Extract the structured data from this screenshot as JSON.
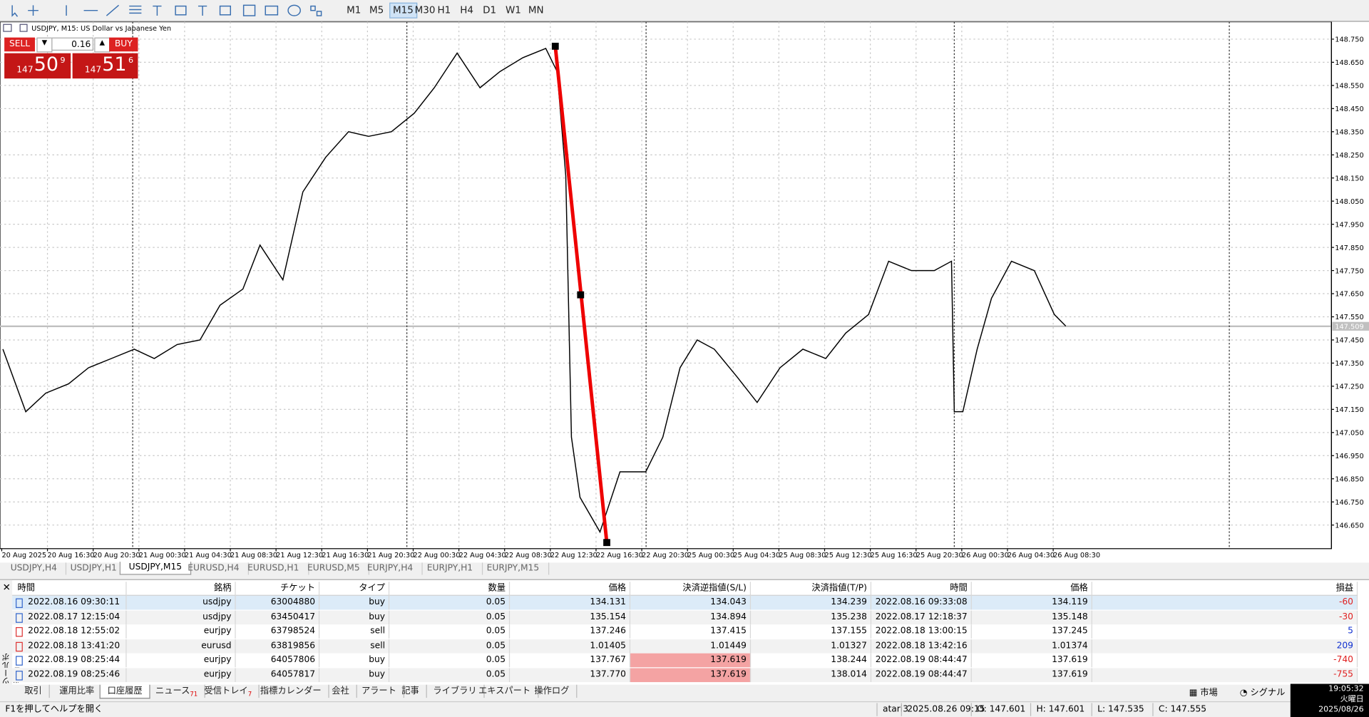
{
  "toolbar": {
    "timeframes": [
      "M1",
      "M5",
      "M15",
      "M30",
      "H1",
      "H4",
      "D1",
      "W1",
      "MN"
    ],
    "active": 2
  },
  "chart_data": {
    "type": "line",
    "title": "USDJPY, M15:  US Dollar vs Japanese Yen",
    "color": "#000000",
    "x": [
      1,
      9,
      16,
      24,
      31,
      39,
      47,
      54,
      62,
      70,
      77,
      85,
      91,
      99,
      106,
      114,
      122,
      129,
      137,
      145,
      152,
      160,
      168,
      175,
      183,
      191,
      195,
      198,
      200,
      203,
      210,
      217,
      226,
      232,
      238,
      244,
      250,
      258,
      265,
      273,
      281,
      289,
      296,
      304,
      311,
      319,
      327,
      333,
      334,
      337,
      342,
      347,
      354,
      362,
      369,
      373
    ],
    "values": [
      147.41,
      147.14,
      147.22,
      147.26,
      147.33,
      147.37,
      147.41,
      147.37,
      147.43,
      147.45,
      147.6,
      147.67,
      147.86,
      147.71,
      148.09,
      148.24,
      148.35,
      148.33,
      148.35,
      148.43,
      148.54,
      148.69,
      148.54,
      148.61,
      148.67,
      148.71,
      148.61,
      148.16,
      147.03,
      146.77,
      146.62,
      146.88,
      146.88,
      147.03,
      147.33,
      147.45,
      147.41,
      147.29,
      147.18,
      147.33,
      147.41,
      147.37,
      147.48,
      147.56,
      147.79,
      147.75,
      147.75,
      147.79,
      147.14,
      147.14,
      147.41,
      147.63,
      147.79,
      147.75,
      147.56,
      147.51
    ],
    "xlim": [
      0,
      466
    ],
    "ylim": [
      146.548,
      148.825
    ],
    "yticks": [
      {
        "value": 148.75,
        "label": "148.750"
      },
      {
        "value": 148.65,
        "label": "148.650"
      },
      {
        "value": 148.55,
        "label": "148.550"
      },
      {
        "value": 148.45,
        "label": "148.450"
      },
      {
        "value": 148.35,
        "label": "148.350"
      },
      {
        "value": 148.25,
        "label": "148.250"
      },
      {
        "value": 148.15,
        "label": "148.150"
      },
      {
        "value": 148.05,
        "label": "148.050"
      },
      {
        "value": 147.95,
        "label": "147.950"
      },
      {
        "value": 147.85,
        "label": "147.850"
      },
      {
        "value": 147.75,
        "label": "147.750"
      },
      {
        "value": 147.65,
        "label": "147.650"
      },
      {
        "value": 147.55,
        "label": "147.550"
      },
      {
        "value": 147.45,
        "label": "147.450"
      },
      {
        "value": 147.35,
        "label": "147.350"
      },
      {
        "value": 147.25,
        "label": "147.250"
      },
      {
        "value": 147.15,
        "label": "147.150"
      },
      {
        "value": 147.05,
        "label": "147.050"
      },
      {
        "value": 146.95,
        "label": "146.950"
      },
      {
        "value": 146.85,
        "label": "146.850"
      },
      {
        "value": 146.75,
        "label": "146.750"
      },
      {
        "value": 146.65,
        "label": "146.650"
      }
    ],
    "xticks": [
      {
        "value": 0,
        "label": "20 Aug 2025"
      },
      {
        "value": 16,
        "label": "20 Aug 16:30"
      },
      {
        "value": 32,
        "label": "20 Aug 20:30"
      },
      {
        "value": 48,
        "label": "21 Aug 00:30"
      },
      {
        "value": 64,
        "label": "21 Aug 04:30"
      },
      {
        "value": 80,
        "label": "21 Aug 08:30"
      },
      {
        "value": 96,
        "label": "21 Aug 12:30"
      },
      {
        "value": 112,
        "label": "21 Aug 16:30"
      },
      {
        "value": 128,
        "label": "21 Aug 20:30"
      },
      {
        "value": 144,
        "label": "22 Aug 00:30"
      },
      {
        "value": 160,
        "label": "22 Aug 04:30"
      },
      {
        "value": 176,
        "label": "22 Aug 08:30"
      },
      {
        "value": 192,
        "label": "22 Aug 12:30"
      },
      {
        "value": 208,
        "label": "22 Aug 16:30"
      },
      {
        "value": 224,
        "label": "22 Aug 20:30"
      },
      {
        "value": 240,
        "label": "25 Aug 00:30"
      },
      {
        "value": 256,
        "label": "25 Aug 04:30"
      },
      {
        "value": 272,
        "label": "25 Aug 08:30"
      },
      {
        "value": 288,
        "label": "25 Aug 12:30"
      },
      {
        "value": 304,
        "label": "25 Aug 16:30"
      },
      {
        "value": 320,
        "label": "25 Aug 20:30"
      },
      {
        "value": 336,
        "label": "26 Aug 00:30"
      },
      {
        "value": 352,
        "label": "26 Aug 04:30"
      },
      {
        "value": 368,
        "label": "26 Aug 08:30"
      }
    ],
    "current_price": 147.509,
    "grid": true
  },
  "trade_panel": {
    "sell": "SELL",
    "buy": "BUY",
    "volume": "0.16",
    "bid": [
      "147",
      "50",
      "9"
    ],
    "ask": [
      "147",
      "51",
      "6"
    ]
  },
  "chart_tabs": [
    "USDJPY,H4",
    "USDJPY,H1",
    "USDJPY,M15",
    "EURUSD,H4",
    "EURUSD,H1",
    "EURUSD,M5",
    "EURJPY,H4",
    "EURJPY,H1",
    "EURJPY,M15"
  ],
  "active_tab": 2,
  "table": {
    "headers": [
      "時間",
      "銘柄",
      "チケット",
      "タイプ",
      "数量",
      "価格",
      "決済逆指値(S/L)",
      "決済指値(T/P)",
      "時間",
      "価格",
      "損益"
    ],
    "rows": [
      [
        "2022.08.16 09:30:11",
        "usdjpy",
        "63004880",
        "buy",
        "0.05",
        "134.131",
        "134.043",
        "134.239",
        "2022.08.16 09:33:08",
        "134.119",
        "-60"
      ],
      [
        "2022.08.17 12:15:04",
        "usdjpy",
        "63450417",
        "buy",
        "0.05",
        "135.154",
        "134.894",
        "135.238",
        "2022.08.17 12:18:37",
        "135.148",
        "-30"
      ],
      [
        "2022.08.18 12:55:02",
        "eurjpy",
        "63798524",
        "sell",
        "0.05",
        "137.246",
        "137.415",
        "137.155",
        "2022.08.18 13:00:15",
        "137.245",
        "5"
      ],
      [
        "2022.08.18 13:41:20",
        "eurusd",
        "63819856",
        "sell",
        "0.05",
        "1.01405",
        "1.01449",
        "1.01327",
        "2022.08.18 13:42:16",
        "1.01374",
        "209"
      ],
      [
        "2022.08.19 08:25:44",
        "eurjpy",
        "64057806",
        "buy",
        "0.05",
        "137.767",
        "137.619",
        "138.244",
        "2022.08.19 08:44:47",
        "137.619",
        "-740"
      ],
      [
        "2022.08.19 08:25:46",
        "eurjpy",
        "64057817",
        "buy",
        "0.05",
        "137.770",
        "137.619",
        "138.014",
        "2022.08.19 08:44:47",
        "137.619",
        "-755"
      ]
    ]
  },
  "side_label": "ツールボックス",
  "bottom_tabs": [
    {
      "label": "取引"
    },
    {
      "label": "運用比率"
    },
    {
      "label": "口座履歴"
    },
    {
      "label": "ニュース",
      "badge": "71"
    },
    {
      "label": "受信トレイ",
      "badge": "7"
    },
    {
      "label": "指標カレンダー"
    },
    {
      "label": "会社"
    },
    {
      "label": "アラート"
    },
    {
      "label": "記事"
    },
    {
      "label": "ライブラリ"
    },
    {
      "label": "エキスパート"
    },
    {
      "label": "操作ログ"
    }
  ],
  "active_bottom": 2,
  "market_buttons": [
    "市場",
    "シグナル"
  ],
  "status": [
    "F1を押してヘルプを開く",
    "atari3",
    "2025.08.26 09:15",
    "O: 147.601",
    "H: 147.601",
    "L: 147.535",
    "C: 147.555"
  ],
  "clock": {
    "time": "19:05:32",
    "weekday": "火曜日",
    "date": "2025/08/26"
  }
}
